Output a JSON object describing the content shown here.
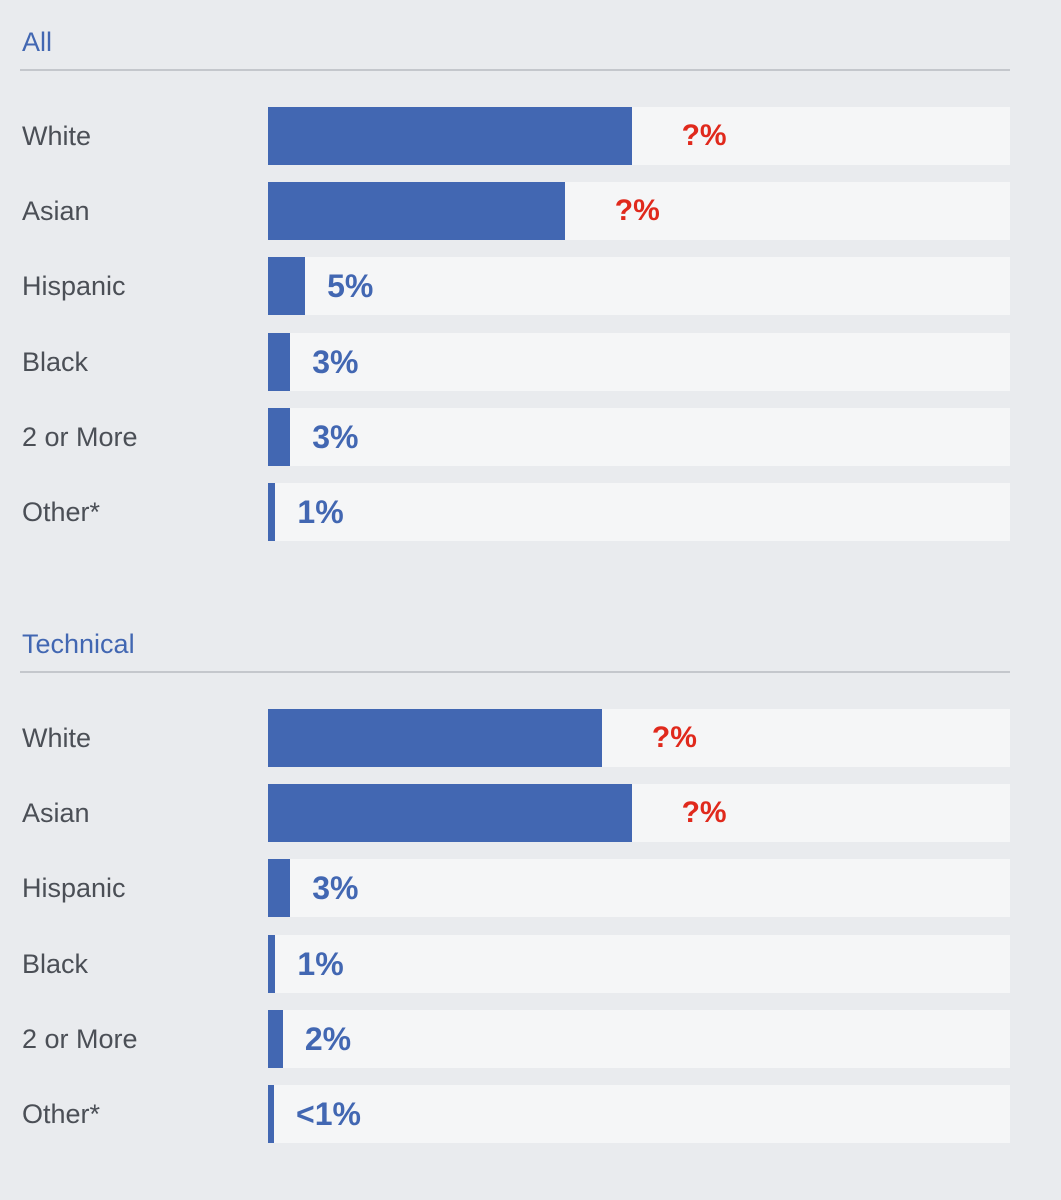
{
  "chart_data": [
    {
      "type": "bar",
      "title": "All",
      "categories": [
        "White",
        "Asian",
        "Hispanic",
        "Black",
        "2 or More",
        "Other*"
      ],
      "values": [
        null,
        null,
        5,
        3,
        3,
        1
      ],
      "value_labels": [
        "?%",
        "?%",
        "5%",
        "3%",
        "3%",
        "1%"
      ],
      "estimated_values": [
        49,
        40,
        5,
        3,
        3,
        1
      ],
      "xlim": [
        0,
        100
      ],
      "grid": false,
      "legend": "none",
      "colors": {
        "bar": "#4267b2",
        "track": "#f5f6f7",
        "unknown_label": "#e0291c"
      }
    },
    {
      "type": "bar",
      "title": "Technical",
      "categories": [
        "White",
        "Asian",
        "Hispanic",
        "Black",
        "2 or More",
        "Other*"
      ],
      "values": [
        null,
        null,
        3,
        1,
        2,
        0.5
      ],
      "value_labels": [
        "?%",
        "?%",
        "3%",
        "1%",
        "2%",
        "<1%"
      ],
      "estimated_values": [
        45,
        49,
        3,
        1,
        2,
        0.5
      ],
      "xlim": [
        0,
        100
      ],
      "grid": false,
      "legend": "none",
      "colors": {
        "bar": "#4267b2",
        "track": "#f5f6f7",
        "unknown_label": "#e0291c"
      }
    }
  ]
}
